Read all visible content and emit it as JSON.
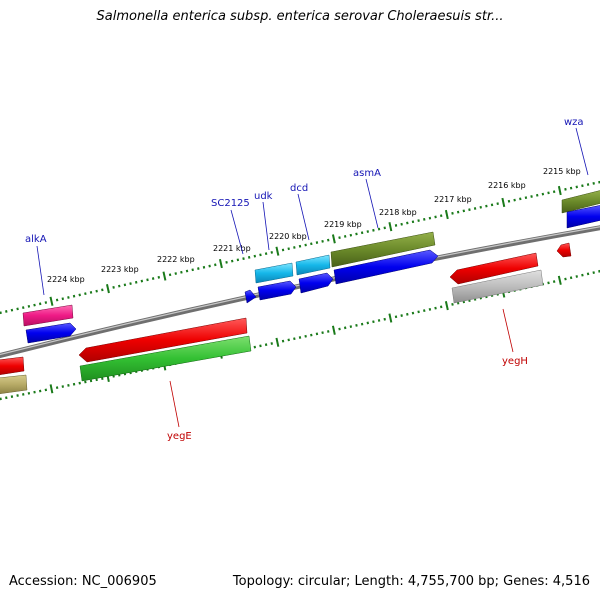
{
  "header": {
    "title": "Salmonella enterica subsp. enterica serovar Choleraesuis str..."
  },
  "footer": {
    "accession": "Accession: NC_006905",
    "summary": "Topology: circular; Length: 4,755,700 bp; Genes: 4,516"
  },
  "map": {
    "topology": "circular",
    "backbone_color": "#7a7a7a",
    "tick_color": "#1a7a1a",
    "forward_label_color": "#1515b5",
    "reverse_label_color": "#c00000",
    "scale_labels": [
      "2224 kbp",
      "2223 kbp",
      "2222 kbp",
      "2221 kbp",
      "2220 kbp",
      "2219 kbp",
      "2218 kbp",
      "2217 kbp",
      "2216 kbp",
      "2215 kbp"
    ],
    "gene_labels": {
      "alkA": "alkA",
      "SC2125": "SC2125",
      "udk": "udk",
      "dcd": "dcd",
      "asmA": "asmA",
      "wza": "wza",
      "yegE": "yegE",
      "yegH": "yegH"
    }
  }
}
